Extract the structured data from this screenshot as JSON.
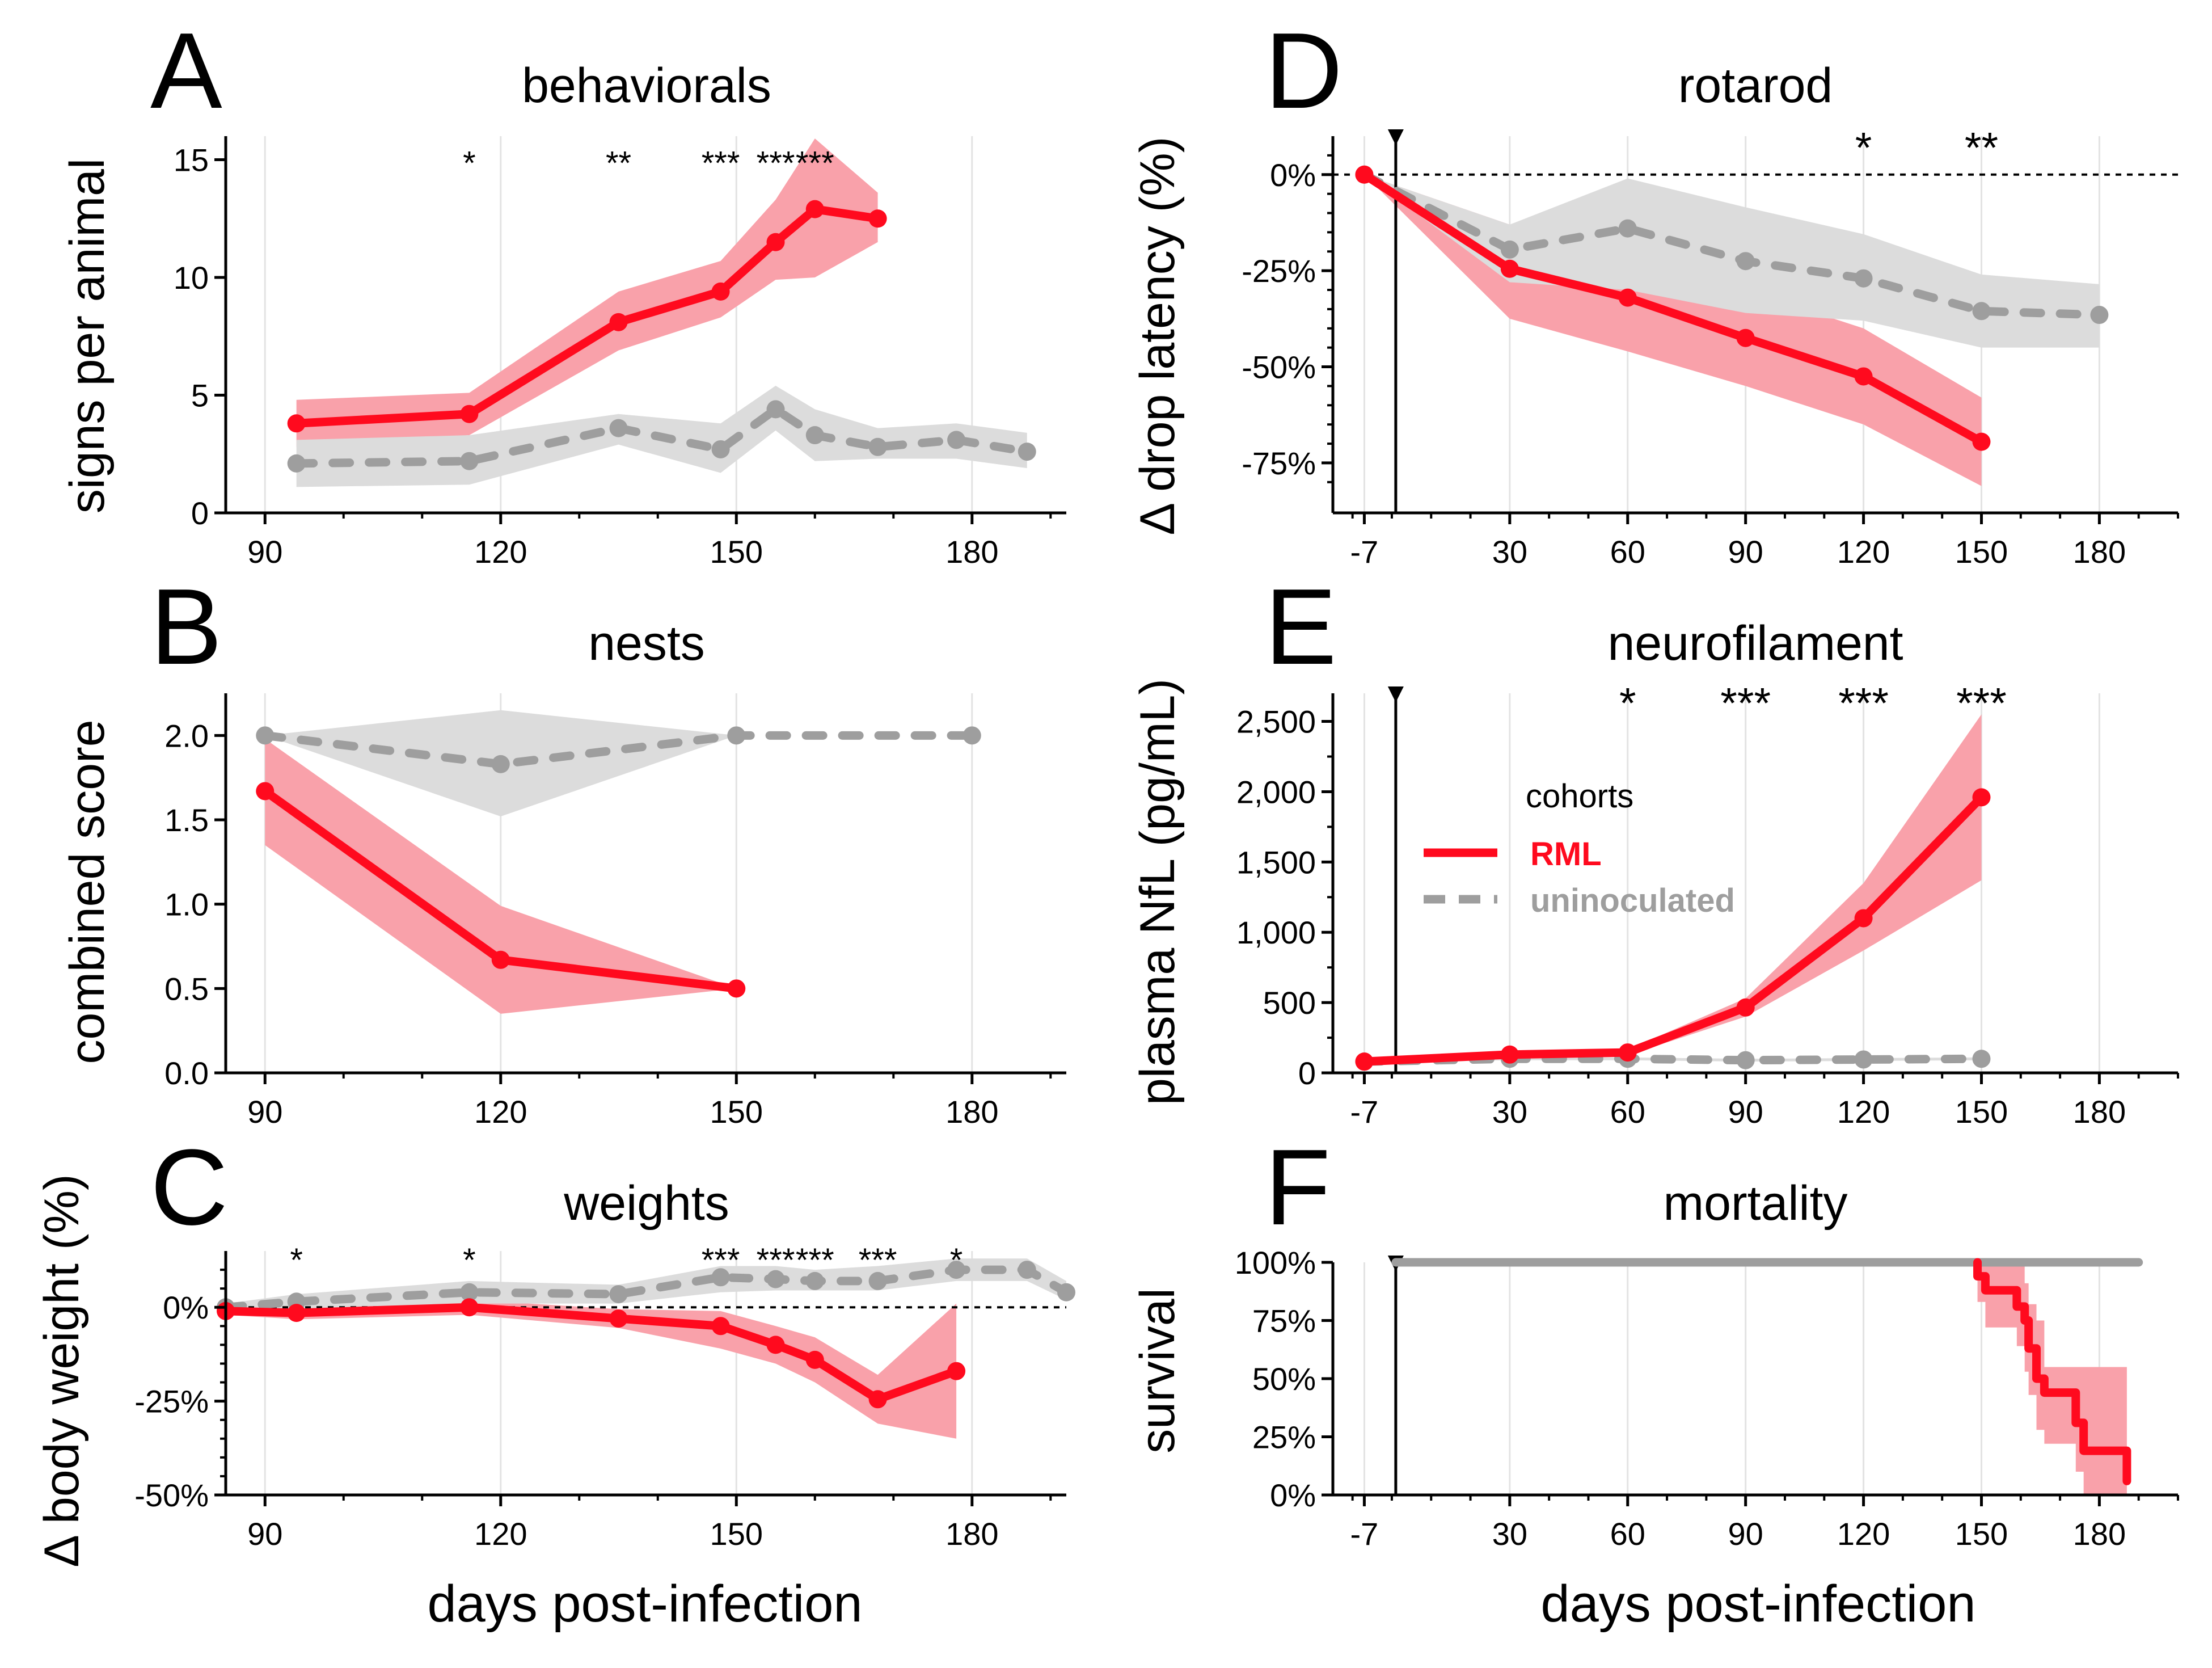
{
  "colors": {
    "rml_line": "#ff0a1e",
    "rml_band": "#f9a1aa",
    "unin_line": "#9e9e9e",
    "unin_band": "#dcdcdc",
    "grid": "#e3e3e3",
    "axis": "#000000"
  },
  "xlabel": "days post-infection",
  "legend": {
    "title": "cohorts",
    "entries": [
      {
        "label": "RML",
        "color": "#ff0a1e",
        "dashed": false
      },
      {
        "label": "uninoculated",
        "color": "#9e9e9e",
        "dashed": true
      }
    ]
  },
  "chart_data": [
    {
      "id": "A",
      "letter": "A",
      "type": "line",
      "title": "behaviorals",
      "ylabel": "signs per animal",
      "xlim": [
        85,
        192
      ],
      "ylim": [
        0,
        16
      ],
      "xticks": [
        90,
        120,
        150,
        180
      ],
      "xtick_labels": [
        "90",
        "120",
        "150",
        "180"
      ],
      "xminor": 10,
      "yticks": [
        0,
        5,
        10,
        15
      ],
      "ytick_labels": [
        "0",
        "5",
        "10",
        "15"
      ],
      "gridx": [
        90,
        120,
        150,
        180
      ],
      "hline": null,
      "vline": null,
      "step": false,
      "series": [
        {
          "name": "RML",
          "x": [
            94,
            116,
            135,
            148,
            155,
            160,
            168
          ],
          "y": [
            3.8,
            4.2,
            8.1,
            9.4,
            11.5,
            12.9,
            12.5
          ],
          "lower": [
            2.8,
            3.3,
            6.9,
            8.3,
            9.9,
            10.0,
            11.5
          ],
          "upper": [
            4.8,
            5.1,
            9.4,
            10.7,
            13.3,
            15.9,
            13.6
          ]
        },
        {
          "name": "uninoculated",
          "x": [
            94,
            116,
            135,
            148,
            155,
            160,
            168,
            178,
            187
          ],
          "y": [
            2.1,
            2.2,
            3.6,
            2.7,
            4.4,
            3.3,
            2.8,
            3.1,
            2.6
          ],
          "lower": [
            1.1,
            1.2,
            2.9,
            1.7,
            3.5,
            2.2,
            2.3,
            2.3,
            1.9
          ],
          "upper": [
            3.1,
            3.3,
            4.2,
            3.8,
            5.4,
            4.4,
            3.6,
            3.8,
            3.4
          ]
        }
      ],
      "sig": [
        {
          "x": 116,
          "label": "*"
        },
        {
          "x": 135,
          "label": "**"
        },
        {
          "x": 148,
          "label": "***"
        },
        {
          "x": 155,
          "label": "***"
        },
        {
          "x": 160,
          "label": "***"
        }
      ],
      "sig_y": 15
    },
    {
      "id": "B",
      "letter": "B",
      "type": "line",
      "title": "nests",
      "ylabel": "combined score",
      "xlim": [
        85,
        192
      ],
      "ylim": [
        0,
        2.25
      ],
      "xticks": [
        90,
        120,
        150,
        180
      ],
      "xtick_labels": [
        "90",
        "120",
        "150",
        "180"
      ],
      "xminor": 10,
      "yticks": [
        0,
        0.5,
        1.0,
        1.5,
        2.0
      ],
      "ytick_labels": [
        "0.0",
        "0.5",
        "1.0",
        "1.5",
        "2.0"
      ],
      "gridx": [
        90,
        120,
        150,
        180
      ],
      "hline": null,
      "vline": null,
      "step": false,
      "series": [
        {
          "name": "RML",
          "x": [
            90,
            120,
            150
          ],
          "y": [
            1.67,
            0.67,
            0.5
          ],
          "lower": [
            1.35,
            0.35,
            0.5
          ],
          "upper": [
            1.98,
            0.99,
            0.5
          ]
        },
        {
          "name": "uninoculated",
          "x": [
            90,
            120,
            150,
            180
          ],
          "y": [
            2.0,
            1.83,
            2.0,
            2.0
          ],
          "lower": [
            2.0,
            1.52,
            2.0,
            2.0
          ],
          "upper": [
            2.0,
            2.15,
            2.0,
            2.0
          ]
        }
      ],
      "sig": [],
      "sig_y": null
    },
    {
      "id": "C",
      "letter": "C",
      "type": "line",
      "title": "weights",
      "ylabel": "Δ body weight (%)",
      "xlim": [
        85,
        192
      ],
      "ylim": [
        -50,
        15
      ],
      "xticks": [
        90,
        120,
        150,
        180
      ],
      "xtick_labels": [
        "90",
        "120",
        "150",
        "180"
      ],
      "xminor": 10,
      "yticks": [
        -50,
        -25,
        0
      ],
      "ytick_labels": [
        "-50%",
        "-25%",
        "0%"
      ],
      "yminor": [
        -45,
        -40,
        -35,
        -30,
        -20,
        -15,
        -10,
        -5,
        5,
        10
      ],
      "gridx": [
        90,
        120,
        150,
        180
      ],
      "hline": 0,
      "vline": null,
      "step": false,
      "series": [
        {
          "name": "RML",
          "x": [
            85,
            94,
            116,
            135,
            148,
            155,
            160,
            168,
            178
          ],
          "y": [
            -1,
            -1.5,
            0,
            -3,
            -5,
            -10,
            -14,
            -24.5,
            -17
          ],
          "lower": [
            -2,
            -3.2,
            -2,
            -5.5,
            -11,
            -15,
            -20,
            -31,
            -35
          ],
          "upper": [
            0,
            0.5,
            2,
            -0.5,
            -1,
            -5,
            -8,
            -18,
            1
          ]
        },
        {
          "name": "uninoculated",
          "x": [
            85,
            94,
            116,
            135,
            148,
            155,
            160,
            168,
            178,
            187,
            192
          ],
          "y": [
            0,
            1.5,
            4,
            3.5,
            8,
            7.5,
            7,
            7,
            10,
            10,
            4
          ],
          "lower": [
            -1,
            -0.5,
            1,
            1,
            4,
            4.5,
            4.5,
            4.5,
            7,
            7,
            2
          ],
          "upper": [
            1,
            3.5,
            7,
            6,
            11,
            11,
            10,
            11,
            13,
            13,
            7
          ]
        }
      ],
      "sig": [
        {
          "x": 94,
          "label": "*"
        },
        {
          "x": 116,
          "label": "*"
        },
        {
          "x": 148,
          "label": "***"
        },
        {
          "x": 155,
          "label": "***"
        },
        {
          "x": 160,
          "label": "***"
        },
        {
          "x": 168,
          "label": "***"
        },
        {
          "x": 178,
          "label": "*"
        }
      ],
      "sig_y": 13.5
    },
    {
      "id": "D",
      "letter": "D",
      "type": "line",
      "title": "rotarod",
      "ylabel": "Δ drop latency (%)",
      "xlim": [
        -15,
        200
      ],
      "ylim": [
        -88,
        10
      ],
      "xticks": [
        -7,
        30,
        60,
        90,
        120,
        150,
        180
      ],
      "xtick_labels": [
        "-7",
        "30",
        "60",
        "90",
        "120",
        "150",
        "180"
      ],
      "xminor": 10,
      "yticks": [
        -75,
        -50,
        -25,
        0
      ],
      "ytick_labels": [
        "-75%",
        "-50%",
        "-25%",
        "0%"
      ],
      "yminor": [
        -80,
        -70,
        -65,
        -60,
        -55,
        -45,
        -40,
        -35,
        -30,
        -20,
        -15,
        -10,
        -5,
        5
      ],
      "gridx": [
        -7,
        30,
        60,
        90,
        120,
        150,
        180
      ],
      "hline": 0,
      "vline": 1,
      "step": false,
      "series": [
        {
          "name": "RML",
          "x": [
            -7,
            30,
            60,
            90,
            120,
            150
          ],
          "y": [
            0,
            -24.5,
            -32,
            -42.5,
            -52.5,
            -69.5
          ],
          "lower": [
            0,
            -37.5,
            -46,
            -55,
            -65,
            -81
          ],
          "upper": [
            0,
            -13,
            -18,
            -30,
            -40,
            -58
          ]
        },
        {
          "name": "uninoculated",
          "x": [
            -7,
            30,
            60,
            90,
            120,
            150,
            180
          ],
          "y": [
            0,
            -19.5,
            -14,
            -22.5,
            -27,
            -35.5,
            -36.5
          ],
          "lower": [
            0,
            -28,
            -30,
            -36,
            -38,
            -45,
            -45
          ],
          "upper": [
            0,
            -13,
            -1,
            -8.5,
            -15.5,
            -26,
            -28.5
          ]
        }
      ],
      "sig": [
        {
          "x": 120,
          "label": "*"
        },
        {
          "x": 150,
          "label": "**"
        }
      ],
      "sig_y": 7,
      "sig_big": true
    },
    {
      "id": "E",
      "letter": "E",
      "type": "line",
      "title": "neurofilament",
      "ylabel": "plasma NfL (pg/mL)",
      "xlim": [
        -15,
        200
      ],
      "ylim": [
        0,
        2700
      ],
      "xticks": [
        -7,
        30,
        60,
        90,
        120,
        150,
        180
      ],
      "xtick_labels": [
        "-7",
        "30",
        "60",
        "90",
        "120",
        "150",
        "180"
      ],
      "xminor": 10,
      "yticks": [
        0,
        500,
        1000,
        1500,
        2000,
        2500
      ],
      "ytick_labels": [
        "0",
        "500",
        "1,000",
        "1,500",
        "2,000",
        "2,500"
      ],
      "yminor": [
        250,
        750,
        1250,
        1750,
        2250
      ],
      "gridx": [
        -7,
        30,
        60,
        90,
        120,
        150,
        180
      ],
      "hline": null,
      "vline": 1,
      "step": false,
      "series": [
        {
          "name": "RML",
          "x": [
            -7,
            30,
            60,
            90,
            120,
            150
          ],
          "y": [
            80,
            130,
            145,
            465,
            1100,
            1960
          ],
          "lower": [
            70,
            110,
            125,
            400,
            870,
            1370
          ],
          "upper": [
            90,
            150,
            165,
            530,
            1350,
            2550
          ]
        },
        {
          "name": "uninoculated",
          "x": [
            -7,
            30,
            60,
            90,
            120,
            150
          ],
          "y": [
            80,
            100,
            100,
            90,
            95,
            100
          ],
          "lower": [
            70,
            90,
            90,
            80,
            85,
            90
          ],
          "upper": [
            90,
            110,
            110,
            100,
            105,
            110
          ]
        }
      ],
      "sig": [
        {
          "x": 60,
          "label": "*"
        },
        {
          "x": 90,
          "label": "***"
        },
        {
          "x": 120,
          "label": "***"
        },
        {
          "x": 150,
          "label": "***"
        }
      ],
      "sig_y": 2630,
      "sig_big": true
    },
    {
      "id": "F",
      "letter": "F",
      "type": "line",
      "title": "mortality",
      "ylabel": "survival",
      "xlim": [
        -15,
        200
      ],
      "ylim": [
        0,
        100
      ],
      "xticks": [
        -7,
        30,
        60,
        90,
        120,
        150,
        180
      ],
      "xtick_labels": [
        "-7",
        "30",
        "60",
        "90",
        "120",
        "150",
        "180"
      ],
      "xminor": 10,
      "yticks": [
        0,
        25,
        50,
        75,
        100
      ],
      "ytick_labels": [
        "0%",
        "25%",
        "50%",
        "75%",
        "100%"
      ],
      "gridx": [
        -7,
        30,
        60,
        90,
        120,
        150,
        180
      ],
      "hline": null,
      "vline": 1,
      "step": true,
      "series": [
        {
          "name": "RML",
          "x": [
            149,
            151,
            159,
            161,
            162,
            164,
            166,
            174,
            176,
            187
          ],
          "y": [
            94,
            88,
            81,
            75,
            63,
            50,
            44,
            31,
            19,
            6
          ],
          "lower": [
            83,
            72,
            64,
            53,
            43,
            28,
            22,
            10,
            0,
            0
          ],
          "upper": [
            100,
            100,
            100,
            91,
            82,
            75,
            55,
            55,
            55,
            55
          ]
        },
        {
          "name": "uninoculated",
          "x": [
            1,
            190
          ],
          "y": [
            100,
            100
          ],
          "lower": null,
          "upper": null
        }
      ],
      "sig": [],
      "sig_y": null
    }
  ]
}
